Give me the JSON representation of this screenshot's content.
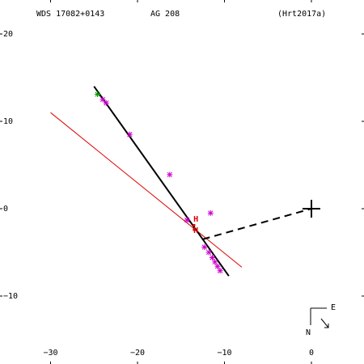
{
  "header": {
    "wds": "WDS 17082+0143",
    "designation": "AG  208",
    "reference": "(Hrt2017a)"
  },
  "chart_data": {
    "type": "scatter",
    "title": "",
    "xlabel": "",
    "ylabel": "",
    "xlim": [
      5,
      -35
    ],
    "ylim": [
      -17.5,
      23
    ],
    "grid": false,
    "x_ticks": [
      0,
      -10,
      -20,
      -30
    ],
    "y_ticks": [
      -10,
      0,
      10,
      20
    ],
    "x_tick_labels": [
      "0",
      "−10",
      "−20",
      "−30"
    ],
    "y_tick_labels": [
      "−10",
      "0",
      "10",
      "20"
    ],
    "primary_star": {
      "x": 0,
      "y": 0
    },
    "orbit_fit_line": {
      "color": "#000000",
      "from": [
        -25.0,
        14.0
      ],
      "to": [
        -9.5,
        -7.7
      ]
    },
    "secondary_line": {
      "color": "#e00000",
      "from": [
        -30.0,
        11.0
      ],
      "to": [
        -8.0,
        -6.7
      ]
    },
    "dashed_line": {
      "color": "#000000",
      "from": [
        -12.5,
        -3.5
      ],
      "to": [
        0,
        0
      ]
    },
    "series": [
      {
        "name": "",
        "color": "#cc00cc",
        "marker": "asterisk",
        "points": [
          [
            -24.0,
            12.5
          ],
          [
            -23.6,
            12.1
          ],
          [
            -20.9,
            8.5
          ],
          [
            -16.3,
            3.9
          ],
          [
            -14.3,
            -1.3
          ],
          [
            -11.6,
            -0.5
          ],
          [
            -12.3,
            -4.4
          ],
          [
            -11.8,
            -5.0
          ],
          [
            -11.4,
            -5.6
          ],
          [
            -11.1,
            -6.1
          ],
          [
            -10.8,
            -6.6
          ],
          [
            -10.5,
            -7.1
          ]
        ]
      },
      {
        "name": "",
        "color": "#009900",
        "marker": "asterisk",
        "points": [
          [
            -24.6,
            13.1
          ]
        ]
      }
    ],
    "h_marks": [
      {
        "label": "H",
        "x": -13.2,
        "y": -1.2
      },
      {
        "label": "H",
        "x": -13.2,
        "y": -2.5
      }
    ],
    "red_dots": [
      [
        -13.5,
        -1.9
      ],
      [
        -13.5,
        -2.4
      ]
    ],
    "compass": {
      "north": "N",
      "east": "E"
    }
  }
}
